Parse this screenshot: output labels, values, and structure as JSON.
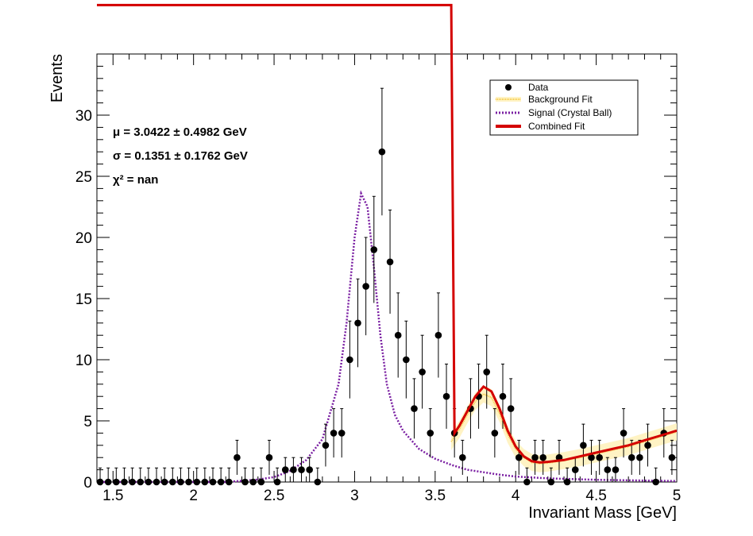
{
  "chart_data": {
    "type": "scatter",
    "xlabel": "Invariant Mass [GeV]",
    "ylabel": "Events",
    "xlim": [
      1.4,
      5.0
    ],
    "ylim": [
      0,
      35
    ],
    "xticks": [
      "1.5",
      "2",
      "2.5",
      "3",
      "3.5",
      "4",
      "4.5",
      "5"
    ],
    "xtick_values": [
      1.5,
      2.0,
      2.5,
      3.0,
      3.5,
      4.0,
      4.5,
      5.0
    ],
    "yticks": [
      "0",
      "5",
      "10",
      "15",
      "20",
      "25",
      "30"
    ],
    "ytick_values": [
      0,
      5,
      10,
      15,
      20,
      25,
      30
    ],
    "annotations": [
      "μ = 3.0422 ± 0.4982 GeV",
      "σ = 0.1351 ± 0.1762 GeV",
      "χ² = nan"
    ],
    "legend": {
      "position": "top-right",
      "entries": [
        {
          "label": "Data",
          "style": "marker"
        },
        {
          "label": "Background Fit",
          "style": "band"
        },
        {
          "label": "Signal (Crystal Ball)",
          "style": "dotted"
        },
        {
          "label": "Combined Fit",
          "style": "line"
        }
      ]
    },
    "colors": {
      "data": "#000000",
      "background_fit": "#f5c842",
      "background_band": "#fff3c4",
      "signal": "#7a1fa2",
      "combined": "#d40000"
    },
    "data_points": [
      [
        1.42,
        0
      ],
      [
        1.47,
        0
      ],
      [
        1.52,
        0
      ],
      [
        1.57,
        0
      ],
      [
        1.62,
        0
      ],
      [
        1.67,
        0
      ],
      [
        1.72,
        0
      ],
      [
        1.77,
        0
      ],
      [
        1.82,
        0
      ],
      [
        1.87,
        0
      ],
      [
        1.92,
        0
      ],
      [
        1.97,
        0
      ],
      [
        2.02,
        0
      ],
      [
        2.07,
        0
      ],
      [
        2.12,
        0
      ],
      [
        2.17,
        0
      ],
      [
        2.22,
        0
      ],
      [
        2.27,
        2
      ],
      [
        2.32,
        0
      ],
      [
        2.37,
        0
      ],
      [
        2.42,
        0
      ],
      [
        2.47,
        2
      ],
      [
        2.52,
        0
      ],
      [
        2.57,
        1
      ],
      [
        2.62,
        1
      ],
      [
        2.67,
        1
      ],
      [
        2.72,
        1
      ],
      [
        2.77,
        0
      ],
      [
        2.82,
        3
      ],
      [
        2.87,
        4
      ],
      [
        2.92,
        4
      ],
      [
        2.97,
        10
      ],
      [
        3.02,
        13
      ],
      [
        3.07,
        16
      ],
      [
        3.12,
        19
      ],
      [
        3.17,
        27
      ],
      [
        3.22,
        18
      ],
      [
        3.27,
        12
      ],
      [
        3.32,
        10
      ],
      [
        3.37,
        6
      ],
      [
        3.42,
        9
      ],
      [
        3.47,
        4
      ],
      [
        3.52,
        12
      ],
      [
        3.57,
        7
      ],
      [
        3.62,
        4
      ],
      [
        3.67,
        2
      ],
      [
        3.72,
        6
      ],
      [
        3.77,
        7
      ],
      [
        3.82,
        9
      ],
      [
        3.87,
        4
      ],
      [
        3.92,
        7
      ],
      [
        3.97,
        6
      ],
      [
        4.02,
        2
      ],
      [
        4.07,
        0
      ],
      [
        4.12,
        2
      ],
      [
        4.17,
        2
      ],
      [
        4.22,
        0
      ],
      [
        4.27,
        2
      ],
      [
        4.32,
        0
      ],
      [
        4.37,
        1
      ],
      [
        4.42,
        3
      ],
      [
        4.47,
        2
      ],
      [
        4.52,
        2
      ],
      [
        4.57,
        1
      ],
      [
        4.62,
        1
      ],
      [
        4.67,
        4
      ],
      [
        4.72,
        2
      ],
      [
        4.77,
        2
      ],
      [
        4.82,
        3
      ],
      [
        4.87,
        0
      ],
      [
        4.92,
        4
      ],
      [
        4.97,
        2
      ]
    ],
    "signal_curve": [
      [
        1.4,
        0
      ],
      [
        2.2,
        0
      ],
      [
        2.4,
        0.2
      ],
      [
        2.5,
        0.4
      ],
      [
        2.6,
        0.9
      ],
      [
        2.7,
        1.8
      ],
      [
        2.8,
        3.5
      ],
      [
        2.9,
        8
      ],
      [
        2.95,
        13
      ],
      [
        3.0,
        20
      ],
      [
        3.04,
        23.6
      ],
      [
        3.08,
        22.5
      ],
      [
        3.12,
        17.5
      ],
      [
        3.16,
        12
      ],
      [
        3.2,
        8
      ],
      [
        3.25,
        5.5
      ],
      [
        3.3,
        4.2
      ],
      [
        3.4,
        2.7
      ],
      [
        3.5,
        1.9
      ],
      [
        3.6,
        1.4
      ],
      [
        3.7,
        1.0
      ],
      [
        3.8,
        0.8
      ],
      [
        3.9,
        0.6
      ],
      [
        4.0,
        0.45
      ],
      [
        4.2,
        0.3
      ],
      [
        4.5,
        0.18
      ],
      [
        5.0,
        0.08
      ]
    ],
    "combined_curve": [
      [
        1.4,
        39
      ],
      [
        3.6,
        39
      ],
      [
        3.62,
        4.0
      ],
      [
        3.65,
        4.6
      ],
      [
        3.7,
        5.8
      ],
      [
        3.75,
        7.0
      ],
      [
        3.8,
        7.8
      ],
      [
        3.85,
        7.4
      ],
      [
        3.9,
        6.0
      ],
      [
        3.95,
        4.2
      ],
      [
        4.0,
        2.9
      ],
      [
        4.05,
        2.1
      ],
      [
        4.1,
        1.7
      ],
      [
        4.15,
        1.6
      ],
      [
        4.2,
        1.65
      ],
      [
        4.3,
        1.8
      ],
      [
        4.4,
        2.1
      ],
      [
        4.5,
        2.4
      ],
      [
        4.6,
        2.7
      ],
      [
        4.7,
        3.0
      ],
      [
        4.8,
        3.4
      ],
      [
        4.9,
        3.8
      ],
      [
        5.0,
        4.2
      ]
    ],
    "background_curve": [
      [
        3.6,
        3.3
      ],
      [
        3.65,
        4.3
      ],
      [
        3.7,
        5.5
      ],
      [
        3.75,
        6.6
      ],
      [
        3.8,
        7.2
      ],
      [
        3.85,
        6.9
      ],
      [
        3.9,
        5.6
      ],
      [
        3.95,
        3.9
      ],
      [
        4.0,
        2.7
      ],
      [
        4.05,
        2.0
      ],
      [
        4.1,
        1.6
      ],
      [
        4.15,
        1.5
      ],
      [
        4.2,
        1.55
      ],
      [
        4.3,
        1.75
      ],
      [
        4.4,
        2.0
      ],
      [
        4.5,
        2.3
      ],
      [
        4.6,
        2.6
      ],
      [
        4.7,
        2.9
      ],
      [
        4.8,
        3.3
      ],
      [
        4.9,
        3.7
      ],
      [
        5.0,
        4.1
      ]
    ]
  }
}
